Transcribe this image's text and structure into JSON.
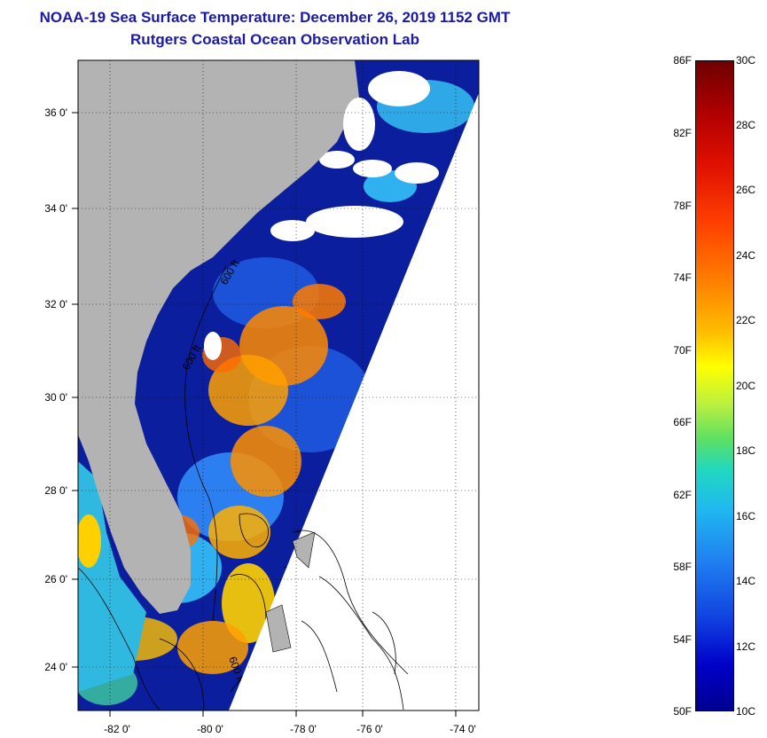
{
  "title": {
    "line1": "NOAA-19 Sea Surface Temperature:  December 26, 2019 1152 GMT",
    "line2": "Rutgers Coastal Ocean Observation Lab"
  },
  "map": {
    "lon_ticks": [
      "-82 0'",
      "-80 0'",
      "-78 0'",
      "-76 0'",
      "-74 0'"
    ],
    "lat_ticks": [
      "24 0'",
      "26 0'",
      "28 0'",
      "30 0'",
      "32 0'",
      "34 0'",
      "36 0'"
    ],
    "contour_labels": [
      "600 ft",
      "600 ft",
      "600 ft"
    ],
    "colors": {
      "land": "#b3b3b3",
      "cloud": "#ffffff",
      "cold_water": "#0a1a9a"
    }
  },
  "colorbar": {
    "fahrenheit": [
      "86F",
      "82F",
      "78F",
      "74F",
      "70F",
      "66F",
      "62F",
      "58F",
      "54F",
      "50F"
    ],
    "celsius": [
      "30C",
      "28C",
      "26C",
      "24C",
      "22C",
      "20C",
      "18C",
      "16C",
      "14C",
      "12C",
      "10C"
    ],
    "range_f": [
      50,
      86
    ],
    "range_c": [
      10,
      30
    ]
  }
}
